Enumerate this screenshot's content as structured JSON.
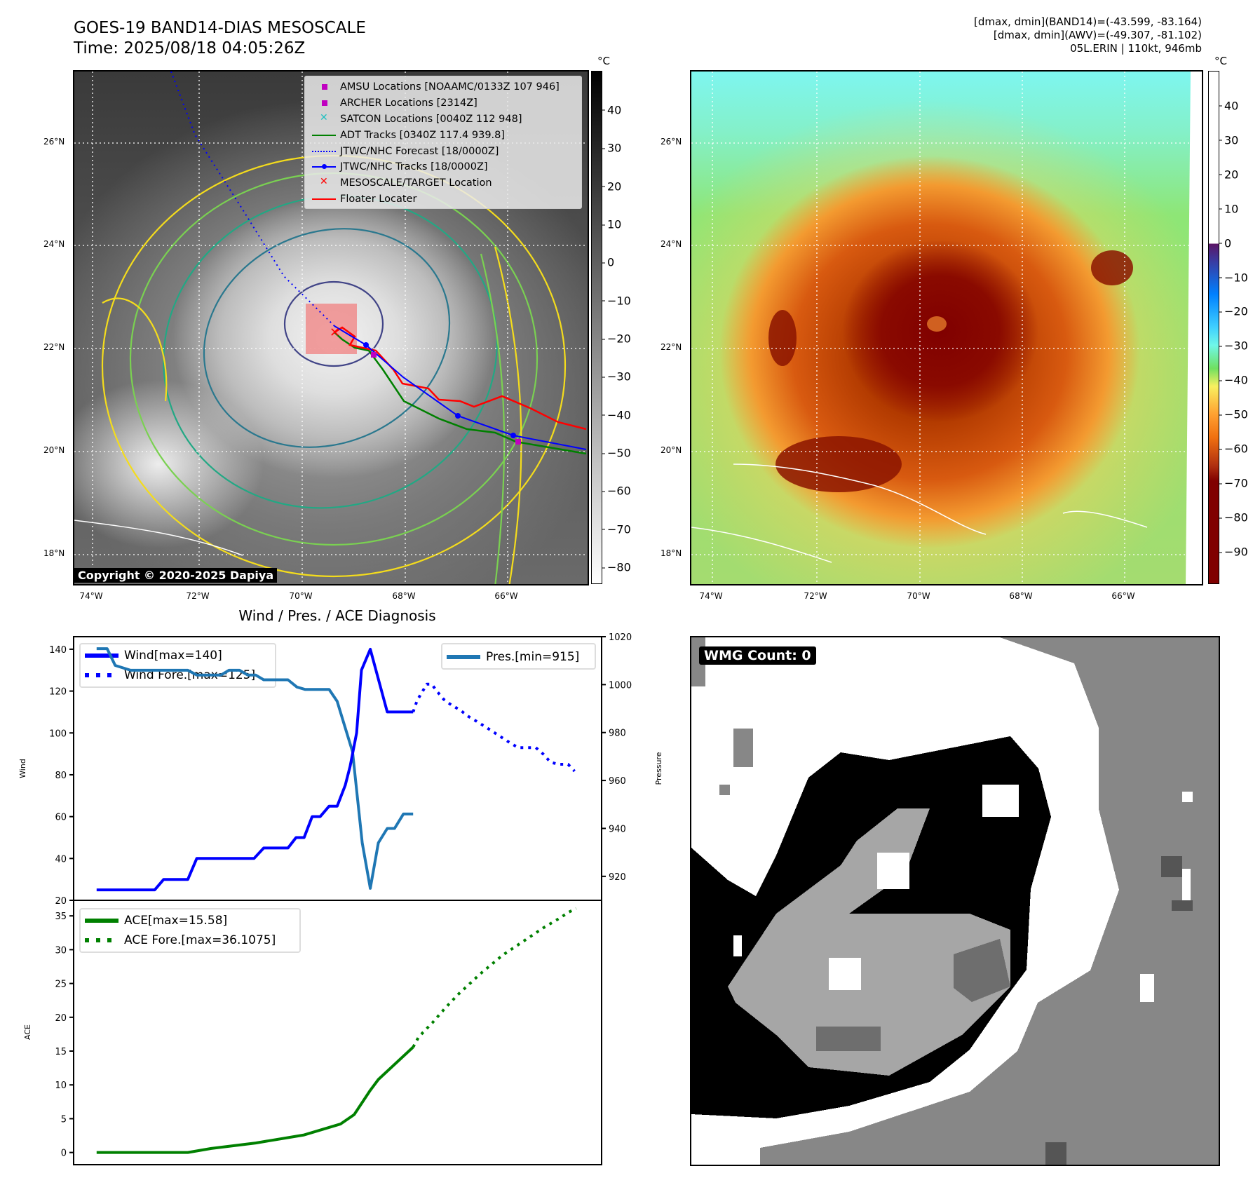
{
  "header": {
    "title_line1": "GOES-19 BAND14-DIAS MESOSCALE",
    "title_line2": "Time: 2025/08/18 04:05:26Z",
    "info_line1": "[dmax, dmin](BAND14)=(-43.599, -83.164)",
    "info_line2": "[dmax, dmin](AWV)=(-49.307, -81.102)",
    "info_line3": "05L.ERIN | 110kt, 946mb"
  },
  "map_left": {
    "lat_labels": [
      "26°N",
      "24°N",
      "22°N",
      "20°N",
      "18°N"
    ],
    "lon_labels": [
      "74°W",
      "72°W",
      "70°W",
      "68°W",
      "66°W"
    ],
    "copyright": "Copyright © 2020-2025 Dapiya",
    "colorbar": {
      "unit": "°C",
      "ticks": [
        "40",
        "30",
        "20",
        "10",
        "0",
        "−10",
        "−20",
        "−30",
        "−40",
        "−50",
        "−60",
        "−70",
        "−80"
      ],
      "range": [
        50.3,
        -84.4
      ],
      "colors": [
        "#000000",
        "#ffffff"
      ]
    },
    "legend": [
      {
        "label": "AMSU Locations [NOAAMC/0133Z 107 946]",
        "icon": "square-marker",
        "color": "#c000c0"
      },
      {
        "label": "ARCHER Locations [2314Z]",
        "icon": "square-marker",
        "color": "#c000c0"
      },
      {
        "label": "SATCON Locations [0040Z 112 948]",
        "icon": "x-marker",
        "color": "#20c0c0"
      },
      {
        "label": "ADT Tracks [0340Z 117.4 939.8]",
        "icon": "solid-line",
        "color": "#008000"
      },
      {
        "label": "JTWC/NHC Forecast [18/0000Z]",
        "icon": "dotted-line",
        "color": "#0000ff"
      },
      {
        "label": "JTWC/NHC Tracks [18/0000Z]",
        "icon": "line-dot",
        "color": "#0000ff"
      },
      {
        "label": "MESOSCALE/TARGET Location",
        "icon": "x-marker",
        "color": "#ff0000"
      },
      {
        "label": "Floater Locater",
        "icon": "solid-line",
        "color": "#ff0000"
      }
    ]
  },
  "map_right": {
    "lat_labels": [
      "26°N",
      "24°N",
      "22°N",
      "20°N",
      "18°N"
    ],
    "lon_labels": [
      "74°W",
      "72°W",
      "70°W",
      "68°W",
      "66°W"
    ],
    "colorbar": {
      "unit": "°C",
      "ticks": [
        "40",
        "30",
        "20",
        "10",
        "0",
        "−10",
        "−20",
        "−30",
        "−40",
        "−50",
        "−60",
        "−70",
        "−80",
        "−90"
      ],
      "range": [
        50.2,
        -99.4
      ]
    }
  },
  "wmg": {
    "label": "WMG Count: 0"
  },
  "chart_data": [
    {
      "type": "line",
      "title": "Wind / Pres. / ACE Diagnosis",
      "ylabel": "Wind",
      "y2label": "Pressure",
      "ylim": [
        20,
        146
      ],
      "y2lim": [
        910,
        1020
      ],
      "xlim": [
        -2.85,
        62.55
      ],
      "yticks": [
        20,
        40,
        60,
        80,
        100,
        120,
        140
      ],
      "y2ticks": [
        920,
        940,
        960,
        980,
        1000,
        1020
      ],
      "series": [
        {
          "name": "Wind[max=140]",
          "axis": "left",
          "style": "solid",
          "color": "#0000ff",
          "x": [
            0,
            7.2,
            8.3,
            11.3,
            12.4,
            19.5,
            20.7,
            23.7,
            24.7,
            25.7,
            26.7,
            27.7,
            28.8,
            29.8,
            30.8,
            31.4,
            32.2,
            32.8,
            33.9,
            36,
            39.2
          ],
          "y": [
            25,
            25,
            30,
            30,
            40,
            40,
            45,
            45,
            50,
            50,
            60,
            60,
            65,
            65,
            75,
            84,
            100,
            130,
            140,
            110,
            110
          ]
        },
        {
          "name": "Wind Fore.[max=125]",
          "axis": "left",
          "style": "dotted",
          "color": "#0000ff",
          "x": [
            39.2,
            39.7,
            40.3,
            40.9,
            41.5,
            42.2,
            43,
            44,
            45,
            46,
            47,
            48,
            49,
            50,
            51,
            52.2,
            53.3,
            54.4,
            55.4,
            56.2,
            57.2,
            58.4,
            59.2
          ],
          "y": [
            110,
            115.5,
            119.4,
            123.3,
            123.3,
            119.7,
            116,
            113.2,
            111,
            108,
            105.7,
            103.3,
            100.8,
            98.3,
            95.8,
            93,
            93,
            93,
            89.6,
            86,
            85,
            85,
            81.7
          ]
        },
        {
          "name": "Pres.[min=915]",
          "axis": "right",
          "style": "solid",
          "color": "#1f77b4",
          "x": [
            0,
            1.3,
            2.3,
            4.2,
            11.3,
            12.4,
            15.4,
            16.4,
            17.7,
            18.7,
            19.7,
            20.7,
            23.7,
            24.8,
            25.8,
            28.8,
            29.8,
            30.7,
            31.7,
            32.9,
            33.9,
            34.9,
            36,
            36.9,
            38,
            39.2
          ],
          "y": [
            1015,
            1015,
            1008,
            1006,
            1006,
            1004,
            1004,
            1006,
            1006,
            1004,
            1004,
            1002,
            1002,
            999,
            998,
            998,
            993,
            983,
            972,
            934,
            915,
            934,
            940,
            940,
            946,
            946
          ]
        }
      ]
    },
    {
      "type": "line",
      "ylabel": "ACE",
      "ylim": [
        -1.8,
        37.3
      ],
      "xlim": [
        -2.85,
        62.55
      ],
      "yticks": [
        0,
        5,
        10,
        15,
        20,
        25,
        30,
        35
      ],
      "series": [
        {
          "name": "ACE[max=15.58]",
          "style": "solid",
          "color": "#008000",
          "x": [
            0,
            11.3,
            14.2,
            19.7,
            25.7,
            30.2,
            31.9,
            33.9,
            34.9,
            39.2
          ],
          "y": [
            0,
            0,
            0.6,
            1.4,
            2.6,
            4.2,
            5.6,
            9.2,
            10.8,
            15.58
          ]
        },
        {
          "name": "ACE Fore.[max=36.1075]",
          "style": "dotted",
          "color": "#008000",
          "x": [
            39.2,
            39.9,
            41.6,
            43.2,
            44.8,
            45.8,
            47.5,
            48.4,
            50.3,
            52.3,
            53.3,
            55.3,
            57.4,
            58.4,
            59.4
          ],
          "y": [
            15.58,
            17.1,
            19.2,
            21.4,
            23.4,
            24.5,
            26.4,
            27.3,
            29.2,
            30.8,
            31.6,
            33.2,
            34.7,
            35.5,
            36.1
          ]
        }
      ]
    }
  ]
}
